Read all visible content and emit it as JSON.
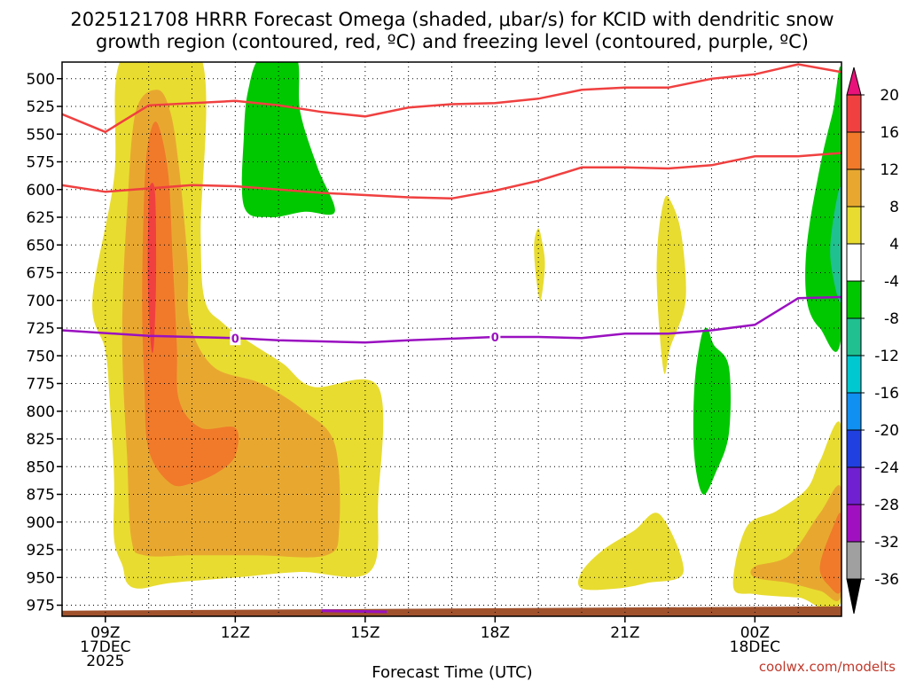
{
  "chart_data": {
    "type": "contour",
    "title_line1": "2025121708 HRRR Forecast Omega (shaded, μbar/s) for KCID with dendritic snow",
    "title_line2": "growth region (contoured, red, ºC) and freezing level (contoured, purple, ºC)",
    "xlabel": "Forecast Time (UTC)",
    "credit": "coolwx.com/modelts",
    "y_axis": {
      "unit": "hPa",
      "ticks": [
        "500",
        "525",
        "550",
        "575",
        "600",
        "625",
        "650",
        "675",
        "700",
        "725",
        "750",
        "775",
        "800",
        "825",
        "850",
        "875",
        "900",
        "925",
        "950",
        "975"
      ],
      "range": [
        485,
        985
      ]
    },
    "x_axis": {
      "range_hours": [
        -1,
        17
      ],
      "ticks": [
        {
          "hour": 0,
          "lines": [
            "09Z",
            "17DEC",
            "2025"
          ]
        },
        {
          "hour": 3,
          "lines": [
            "12Z"
          ]
        },
        {
          "hour": 6,
          "lines": [
            "15Z"
          ]
        },
        {
          "hour": 9,
          "lines": [
            "18Z"
          ]
        },
        {
          "hour": 12,
          "lines": [
            "21Z"
          ]
        },
        {
          "hour": 15,
          "lines": [
            "00Z",
            "18DEC"
          ]
        }
      ]
    },
    "colorbar": {
      "bins": [
        {
          "color": "#e8127a",
          "label": "20"
        },
        {
          "color": "#f04040",
          "label": "16"
        },
        {
          "color": "#f07a2a",
          "label": "12"
        },
        {
          "color": "#e8a830",
          "label": "8"
        },
        {
          "color": "#e8dc30",
          "label": "4"
        },
        {
          "color": "#ffffff",
          "label": "-4"
        },
        {
          "color": "#00c800",
          "label": "-8"
        },
        {
          "color": "#20c090",
          "label": "-12"
        },
        {
          "color": "#00c8d0",
          "label": "-16"
        },
        {
          "color": "#1090f0",
          "label": "-20"
        },
        {
          "color": "#2040e0",
          "label": "-24"
        },
        {
          "color": "#7020d0",
          "label": "-28"
        },
        {
          "color": "#a010c0",
          "label": "-32"
        },
        {
          "color": "#a0a0a0",
          "label": "-36"
        }
      ]
    },
    "contours": {
      "dgz_upper_-18C": [
        [
          -1,
          532
        ],
        [
          0,
          548
        ],
        [
          1,
          524
        ],
        [
          3,
          520
        ],
        [
          4,
          524
        ],
        [
          5,
          530
        ],
        [
          6,
          534
        ],
        [
          7,
          526
        ],
        [
          8,
          523
        ],
        [
          9,
          522
        ],
        [
          10,
          518
        ],
        [
          11,
          510
        ],
        [
          12,
          508
        ],
        [
          13,
          508
        ],
        [
          14,
          500
        ],
        [
          15,
          496
        ],
        [
          16,
          487
        ],
        [
          17,
          494
        ]
      ],
      "dgz_lower_-12C": [
        [
          -1,
          596
        ],
        [
          0,
          602
        ],
        [
          2,
          596
        ],
        [
          3,
          597
        ],
        [
          5,
          603
        ],
        [
          7,
          607
        ],
        [
          8,
          608
        ],
        [
          9,
          601
        ],
        [
          10,
          592
        ],
        [
          11,
          580
        ],
        [
          12,
          580
        ],
        [
          13,
          581
        ],
        [
          14,
          578
        ],
        [
          15,
          570
        ],
        [
          16,
          570
        ],
        [
          17,
          567
        ]
      ],
      "freezing_level_0C": [
        [
          -1,
          727
        ],
        [
          1,
          732
        ],
        [
          3,
          734
        ],
        [
          4,
          736
        ],
        [
          6,
          738
        ],
        [
          7,
          736
        ],
        [
          9,
          733
        ],
        [
          10,
          733
        ],
        [
          11,
          734
        ],
        [
          12,
          730
        ],
        [
          13,
          730
        ],
        [
          14,
          727
        ],
        [
          15,
          722
        ],
        [
          16,
          698
        ],
        [
          17,
          697
        ]
      ],
      "freezing_level_label": "0"
    },
    "shaded_regions": [
      {
        "value": 4,
        "color": "#e8dc30",
        "points": [
          [
            -0.3,
            700
          ],
          [
            0.2,
            590
          ],
          [
            0.4,
            480
          ],
          [
            2.2,
            480
          ],
          [
            2.2,
            640
          ],
          [
            2.3,
            700
          ],
          [
            2.7,
            720
          ],
          [
            3.3,
            737
          ],
          [
            4.1,
            757
          ],
          [
            4.8,
            778
          ],
          [
            6.3,
            778
          ],
          [
            6.3,
            880
          ],
          [
            6.1,
            945
          ],
          [
            4.5,
            945
          ],
          [
            3.0,
            950
          ],
          [
            1.5,
            955
          ],
          [
            0.8,
            960
          ],
          [
            0.5,
            955
          ],
          [
            0.4,
            940
          ],
          [
            0.2,
            915
          ],
          [
            0.2,
            860
          ],
          [
            0.1,
            790
          ],
          [
            0.0,
            745
          ]
        ]
      },
      {
        "value": 8,
        "color": "#e8a830",
        "points": [
          [
            0.5,
            620
          ],
          [
            0.7,
            530
          ],
          [
            1.2,
            510
          ],
          [
            1.5,
            530
          ],
          [
            1.7,
            580
          ],
          [
            1.9,
            665
          ],
          [
            1.95,
            720
          ],
          [
            2.5,
            760
          ],
          [
            3.6,
            775
          ],
          [
            4.6,
            800
          ],
          [
            5.3,
            830
          ],
          [
            5.4,
            905
          ],
          [
            5.1,
            930
          ],
          [
            3.5,
            930
          ],
          [
            2.0,
            930
          ],
          [
            0.9,
            930
          ],
          [
            0.6,
            915
          ],
          [
            0.5,
            840
          ],
          [
            0.4,
            760
          ],
          [
            0.4,
            700
          ]
        ]
      },
      {
        "value": 12,
        "color": "#f07a2a",
        "points": [
          [
            0.9,
            600
          ],
          [
            1.0,
            555
          ],
          [
            1.2,
            540
          ],
          [
            1.45,
            585
          ],
          [
            1.55,
            660
          ],
          [
            1.65,
            740
          ],
          [
            1.7,
            790
          ],
          [
            2.2,
            815
          ],
          [
            3.0,
            815
          ],
          [
            3.0,
            840
          ],
          [
            2.6,
            855
          ],
          [
            2.0,
            865
          ],
          [
            1.5,
            865
          ],
          [
            1.0,
            835
          ],
          [
            0.9,
            775
          ],
          [
            0.85,
            700
          ]
        ]
      },
      {
        "value": 16,
        "color": "#f04040",
        "points": [
          [
            1.0,
            612
          ],
          [
            1.05,
            595
          ],
          [
            1.15,
            605
          ],
          [
            1.17,
            680
          ],
          [
            1.12,
            740
          ],
          [
            1.05,
            740
          ],
          [
            0.98,
            680
          ]
        ]
      },
      {
        "value": 4,
        "color": "#e8dc30",
        "points": [
          [
            10.0,
            635
          ],
          [
            10.1,
            650
          ],
          [
            10.15,
            670
          ],
          [
            10.05,
            700
          ],
          [
            9.95,
            680
          ],
          [
            9.9,
            650
          ]
        ]
      },
      {
        "value": 4,
        "color": "#e8dc30",
        "points": [
          [
            13.05,
            610
          ],
          [
            13.3,
            640
          ],
          [
            13.4,
            700
          ],
          [
            13.05,
            742
          ],
          [
            12.9,
            765
          ],
          [
            12.75,
            700
          ],
          [
            12.75,
            650
          ],
          [
            12.9,
            610
          ]
        ]
      },
      {
        "value": 4,
        "color": "#e8dc30",
        "points": [
          [
            11.0,
            945
          ],
          [
            11.5,
            925
          ],
          [
            12.2,
            908
          ],
          [
            12.8,
            893
          ],
          [
            13.35,
            945
          ],
          [
            12.5,
            955
          ],
          [
            11.8,
            960
          ],
          [
            11.0,
            960
          ]
        ]
      },
      {
        "value": 4,
        "color": "#e8dc30",
        "points": [
          [
            14.5,
            958
          ],
          [
            14.8,
            905
          ],
          [
            15.5,
            890
          ],
          [
            16.2,
            870
          ],
          [
            16.5,
            845
          ],
          [
            17.0,
            815
          ],
          [
            17.0,
            970
          ],
          [
            16.0,
            968
          ],
          [
            15.0,
            965
          ]
        ]
      },
      {
        "value": 8,
        "color": "#e8a830",
        "points": [
          [
            15.0,
            950
          ],
          [
            15.0,
            940
          ],
          [
            15.8,
            930
          ],
          [
            16.5,
            892
          ],
          [
            17.0,
            870
          ],
          [
            17.0,
            965
          ],
          [
            16.5,
            962
          ],
          [
            15.8,
            955
          ]
        ]
      },
      {
        "value": 12,
        "color": "#f07a2a",
        "points": [
          [
            16.5,
            940
          ],
          [
            16.8,
            905
          ],
          [
            17.0,
            895
          ],
          [
            17.0,
            960
          ],
          [
            16.7,
            957
          ]
        ]
      },
      {
        "value": -4,
        "color": "#00c800",
        "points": [
          [
            3.6,
            480
          ],
          [
            4.4,
            480
          ],
          [
            4.5,
            530
          ],
          [
            4.9,
            580
          ],
          [
            5.3,
            620
          ],
          [
            4.6,
            620
          ],
          [
            3.8,
            625
          ],
          [
            3.2,
            615
          ],
          [
            3.2,
            550
          ],
          [
            3.3,
            510
          ]
        ]
      },
      {
        "value": -4,
        "color": "#00c800",
        "points": [
          [
            14.05,
            740
          ],
          [
            14.4,
            760
          ],
          [
            14.4,
            820
          ],
          [
            14.1,
            855
          ],
          [
            13.8,
            875
          ],
          [
            13.6,
            840
          ],
          [
            13.6,
            780
          ],
          [
            13.75,
            735
          ],
          [
            13.9,
            725
          ]
        ]
      },
      {
        "value": -4,
        "color": "#00c800",
        "points": [
          [
            17.0,
            500
          ],
          [
            17.0,
            730
          ],
          [
            16.5,
            725
          ],
          [
            16.2,
            700
          ],
          [
            16.2,
            650
          ],
          [
            16.5,
            580
          ],
          [
            16.8,
            530
          ]
        ]
      },
      {
        "value": -8,
        "color": "#20c090",
        "points": [
          [
            17.0,
            600
          ],
          [
            17.0,
            700
          ],
          [
            16.75,
            665
          ],
          [
            16.8,
            630
          ]
        ]
      }
    ],
    "ground": {
      "color": "#a0522d",
      "top_pressure_start": 980,
      "top_pressure_end": 976,
      "bottom_pressure": 985
    },
    "surface_freezing_segment": [
      [
        5.0,
        980
      ],
      [
        6.5,
        981
      ]
    ]
  }
}
